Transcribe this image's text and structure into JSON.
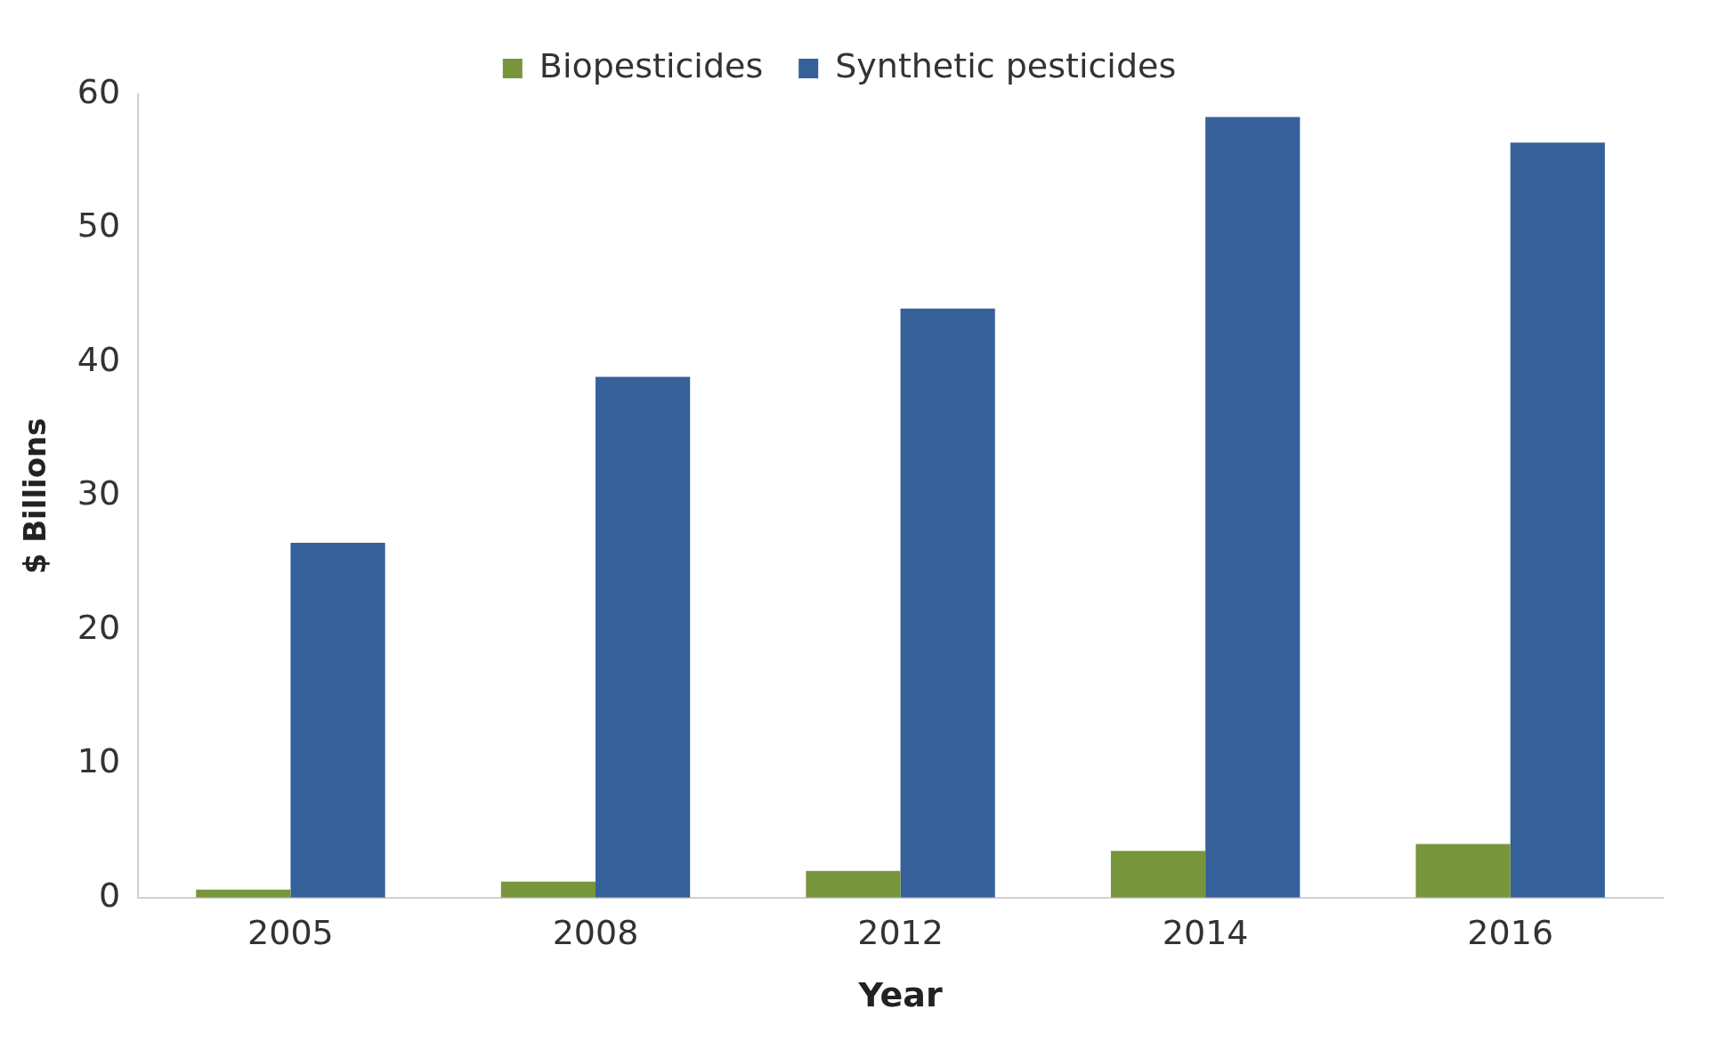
{
  "chart_data": {
    "type": "bar",
    "xlabel": "Year",
    "ylabel": "$ Billions",
    "categories": [
      "2005",
      "2008",
      "2012",
      "2014",
      "2016"
    ],
    "series": [
      {
        "name": "Biopesticides",
        "color": "#77963c",
        "values": [
          0.6,
          1.2,
          2.0,
          3.5,
          4.0
        ]
      },
      {
        "name": "Synthetic pesticides",
        "color": "#36609a",
        "values": [
          26.5,
          38.9,
          44.0,
          58.3,
          56.4
        ]
      }
    ],
    "ylim": [
      0,
      60
    ],
    "yticks": [
      0,
      10,
      20,
      30,
      40,
      50,
      60
    ],
    "grid": false,
    "legend": "top"
  }
}
